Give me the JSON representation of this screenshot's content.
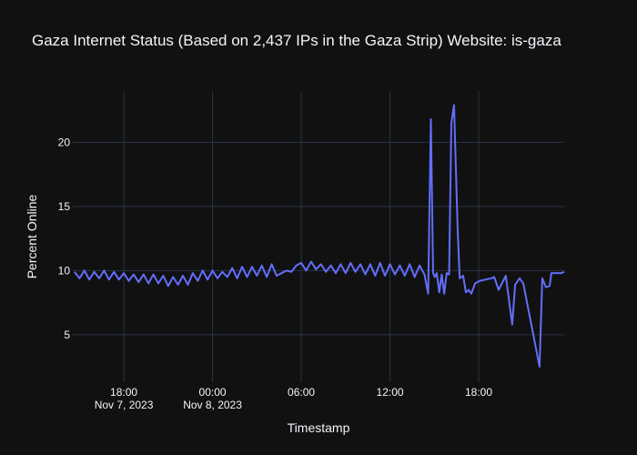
{
  "chart_data": {
    "type": "line",
    "title": "Gaza Internet Status (Based on 2,437 IPs in the Gaza Strip) Website: is-gaza",
    "x_label": "Timestamp",
    "y_label": "Percent Online",
    "color": "#636efa",
    "grid": true,
    "xlim": [
      "2023-11-07 14:33",
      "2023-11-08 23:47"
    ],
    "xticks": [
      {
        "value": "2023-11-07 18:00",
        "label": "18:00",
        "date_label": "Nov 7, 2023"
      },
      {
        "value": "2023-11-08 00:00",
        "label": "00:00",
        "date_label": "Nov 8, 2023"
      },
      {
        "value": "2023-11-08 06:00",
        "label": "06:00"
      },
      {
        "value": "2023-11-08 12:00",
        "label": "12:00"
      },
      {
        "value": "2023-11-08 18:00",
        "label": "18:00"
      }
    ],
    "ylim": [
      1.3,
      24.0
    ],
    "yticks": [
      5,
      10,
      15,
      20
    ],
    "x": [
      "2023-11-07 14:40",
      "2023-11-07 15:00",
      "2023-11-07 15:20",
      "2023-11-07 15:40",
      "2023-11-07 16:00",
      "2023-11-07 16:20",
      "2023-11-07 16:40",
      "2023-11-07 17:00",
      "2023-11-07 17:20",
      "2023-11-07 17:40",
      "2023-11-07 18:00",
      "2023-11-07 18:20",
      "2023-11-07 18:40",
      "2023-11-07 19:00",
      "2023-11-07 19:20",
      "2023-11-07 19:40",
      "2023-11-07 20:00",
      "2023-11-07 20:20",
      "2023-11-07 20:40",
      "2023-11-07 21:00",
      "2023-11-07 21:20",
      "2023-11-07 21:40",
      "2023-11-07 22:00",
      "2023-11-07 22:20",
      "2023-11-07 22:40",
      "2023-11-07 23:00",
      "2023-11-07 23:20",
      "2023-11-07 23:40",
      "2023-11-08 00:00",
      "2023-11-08 00:20",
      "2023-11-08 00:40",
      "2023-11-08 01:00",
      "2023-11-08 01:20",
      "2023-11-08 01:40",
      "2023-11-08 02:00",
      "2023-11-08 02:20",
      "2023-11-08 02:40",
      "2023-11-08 03:00",
      "2023-11-08 03:20",
      "2023-11-08 03:40",
      "2023-11-08 04:00",
      "2023-11-08 04:20",
      "2023-11-08 04:40",
      "2023-11-08 05:00",
      "2023-11-08 05:20",
      "2023-11-08 05:40",
      "2023-11-08 06:00",
      "2023-11-08 06:20",
      "2023-11-08 06:40",
      "2023-11-08 07:00",
      "2023-11-08 07:20",
      "2023-11-08 07:40",
      "2023-11-08 08:00",
      "2023-11-08 08:20",
      "2023-11-08 08:40",
      "2023-11-08 09:00",
      "2023-11-08 09:20",
      "2023-11-08 09:40",
      "2023-11-08 10:00",
      "2023-11-08 10:20",
      "2023-11-08 10:40",
      "2023-11-08 11:00",
      "2023-11-08 11:20",
      "2023-11-08 11:40",
      "2023-11-08 12:00",
      "2023-11-08 12:20",
      "2023-11-08 12:40",
      "2023-11-08 13:00",
      "2023-11-08 13:20",
      "2023-11-08 13:40",
      "2023-11-08 14:00",
      "2023-11-08 14:20",
      "2023-11-08 14:35",
      "2023-11-08 14:46",
      "2023-11-08 14:55",
      "2023-11-08 15:02",
      "2023-11-08 15:10",
      "2023-11-08 15:20",
      "2023-11-08 15:30",
      "2023-11-08 15:40",
      "2023-11-08 15:50",
      "2023-11-08 16:00",
      "2023-11-08 16:09",
      "2023-11-08 16:20",
      "2023-11-08 16:35",
      "2023-11-08 16:43",
      "2023-11-08 16:57",
      "2023-11-08 17:08",
      "2023-11-08 17:20",
      "2023-11-08 17:30",
      "2023-11-08 17:38",
      "2023-11-08 17:45",
      "2023-11-08 18:04",
      "2023-11-08 18:52",
      "2023-11-08 19:03",
      "2023-11-08 19:21",
      "2023-11-08 19:50",
      "2023-11-08 20:16",
      "2023-11-08 20:28",
      "2023-11-08 20:46",
      "2023-11-08 21:01",
      "2023-11-08 22:07",
      "2023-11-08 22:18",
      "2023-11-08 22:33",
      "2023-11-08 22:48",
      "2023-11-08 22:55",
      "2023-11-08 23:35",
      "2023-11-08 23:47"
    ],
    "values": [
      9.9,
      9.4,
      10.0,
      9.3,
      9.9,
      9.4,
      10.0,
      9.3,
      9.9,
      9.3,
      9.8,
      9.2,
      9.7,
      9.1,
      9.7,
      9.0,
      9.7,
      9.0,
      9.6,
      8.8,
      9.5,
      8.9,
      9.6,
      8.9,
      9.8,
      9.2,
      10.0,
      9.3,
      10.0,
      9.4,
      9.9,
      9.5,
      10.2,
      9.4,
      10.3,
      9.5,
      10.3,
      9.6,
      10.4,
      9.5,
      10.5,
      9.6,
      9.8,
      10.0,
      9.9,
      10.4,
      10.6,
      10.0,
      10.7,
      10.1,
      10.5,
      9.9,
      10.4,
      9.8,
      10.5,
      9.8,
      10.6,
      9.9,
      10.5,
      9.7,
      10.5,
      9.6,
      10.6,
      9.6,
      10.5,
      9.7,
      10.4,
      9.6,
      10.5,
      9.5,
      10.4,
      9.7,
      8.2,
      21.8,
      9.8,
      9.5,
      9.8,
      8.3,
      9.7,
      8.2,
      9.8,
      9.7,
      21.5,
      22.9,
      13.0,
      9.4,
      9.6,
      8.3,
      8.5,
      8.2,
      8.6,
      9.0,
      9.2,
      9.4,
      9.5,
      8.5,
      9.6,
      5.8,
      8.9,
      9.4,
      9.0,
      2.5,
      9.4,
      8.7,
      8.8,
      9.8,
      9.8,
      9.9
    ]
  }
}
